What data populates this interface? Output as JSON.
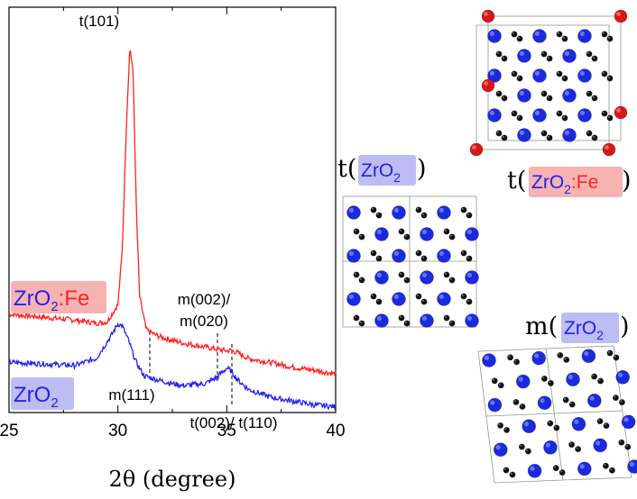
{
  "chart_data": {
    "type": "line",
    "title": "",
    "xlabel": "2θ (degree)",
    "ylabel": "",
    "xlim": [
      25,
      40
    ],
    "ylim": [
      0,
      1
    ],
    "x_ticks": [
      "25",
      "30",
      "35",
      "40"
    ],
    "colors": {
      "fe": "#ff2222",
      "pure": "#2222ee"
    },
    "series": [
      {
        "name": "ZrO2:Fe",
        "color": "#ff2222",
        "x": [
          25,
          26,
          27,
          28,
          29,
          29.5,
          30,
          30.2,
          30.4,
          30.55,
          30.7,
          30.85,
          31,
          31.3,
          31.6,
          32,
          33,
          34,
          35,
          35.2,
          35.5,
          36,
          37,
          38,
          39,
          40
        ],
        "y": [
          0.255,
          0.25,
          0.245,
          0.24,
          0.232,
          0.235,
          0.28,
          0.42,
          0.76,
          0.95,
          0.88,
          0.52,
          0.3,
          0.215,
          0.205,
          0.195,
          0.18,
          0.17,
          0.16,
          0.162,
          0.155,
          0.14,
          0.13,
          0.118,
          0.11,
          0.1
        ]
      },
      {
        "name": "ZrO2",
        "color": "#2222ee",
        "x": [
          25,
          26,
          27,
          28,
          29,
          29.7,
          30,
          30.2,
          30.5,
          30.8,
          31.2,
          31.8,
          32.5,
          33,
          34,
          34.5,
          35,
          35.2,
          35.5,
          36,
          37,
          38,
          39,
          40
        ],
        "y": [
          0.13,
          0.128,
          0.125,
          0.122,
          0.14,
          0.2,
          0.23,
          0.225,
          0.185,
          0.135,
          0.095,
          0.085,
          0.075,
          0.07,
          0.075,
          0.09,
          0.115,
          0.108,
          0.085,
          0.06,
          0.04,
          0.03,
          0.02,
          0.015
        ]
      }
    ],
    "annotations": {
      "t101": "t(101)",
      "m111": "m(111)",
      "m002_line1": "m(002)/",
      "m002_line2": "m(020)",
      "t002": "t(002)/ t(110)"
    },
    "sample_labels": {
      "fe": {
        "base": "ZrO",
        "sub": "2",
        "suffix": ":Fe"
      },
      "pure": {
        "base": "ZrO",
        "sub": "2",
        "suffix": ""
      }
    }
  },
  "structures": {
    "t_pure": {
      "prefix": "t(",
      "base": "ZrO",
      "sub": "2",
      "suffix": "",
      "close": ")"
    },
    "t_fe": {
      "prefix": "t(",
      "base": "ZrO",
      "sub": "2",
      "suffix": ":Fe",
      "close": ")"
    },
    "m_pure": {
      "prefix": "m(",
      "base": "ZrO",
      "sub": "2",
      "suffix": "",
      "close": ")"
    }
  },
  "atom_colors": {
    "zr": "#1a2ae0",
    "oxygen": "#111111",
    "fe": "#d81818"
  }
}
